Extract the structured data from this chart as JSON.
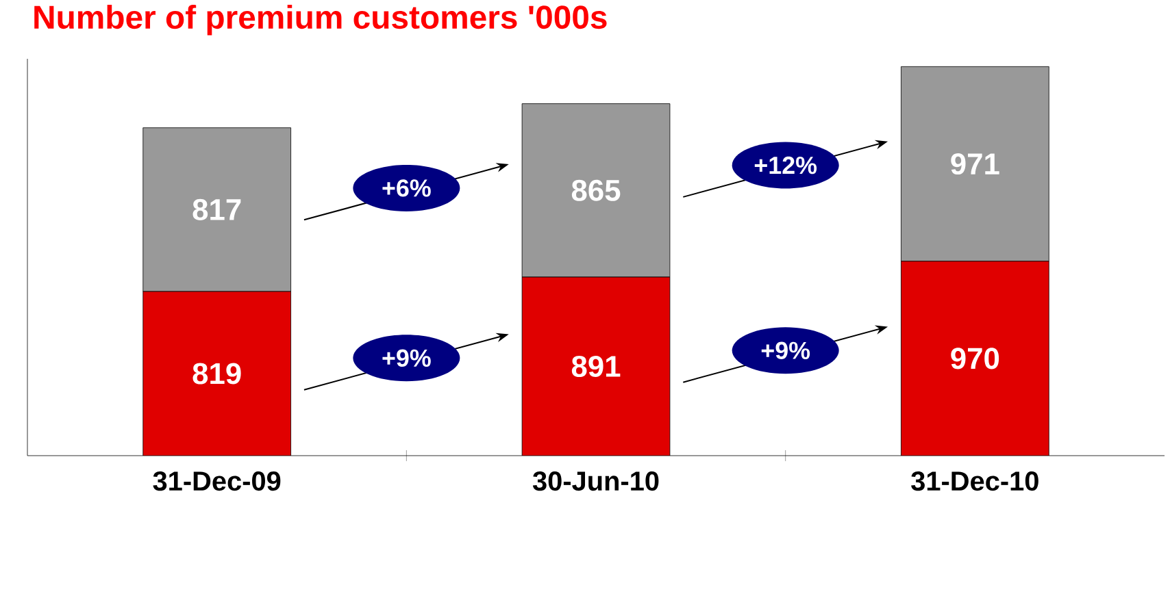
{
  "chart_data": {
    "type": "bar",
    "stacked": true,
    "title": "Number of premium customers '000s",
    "categories": [
      "31-Dec-09",
      "30-Jun-10",
      "31-Dec-10"
    ],
    "series": [
      {
        "color": "#e00000",
        "values": [
          819,
          891,
          970
        ]
      },
      {
        "color": "#999999",
        "values": [
          817,
          865,
          971
        ]
      }
    ],
    "data_labels": true,
    "tick_labels": "x",
    "annotations": [
      "+6%",
      "+9%",
      "+12%",
      "+9%"
    ]
  }
}
